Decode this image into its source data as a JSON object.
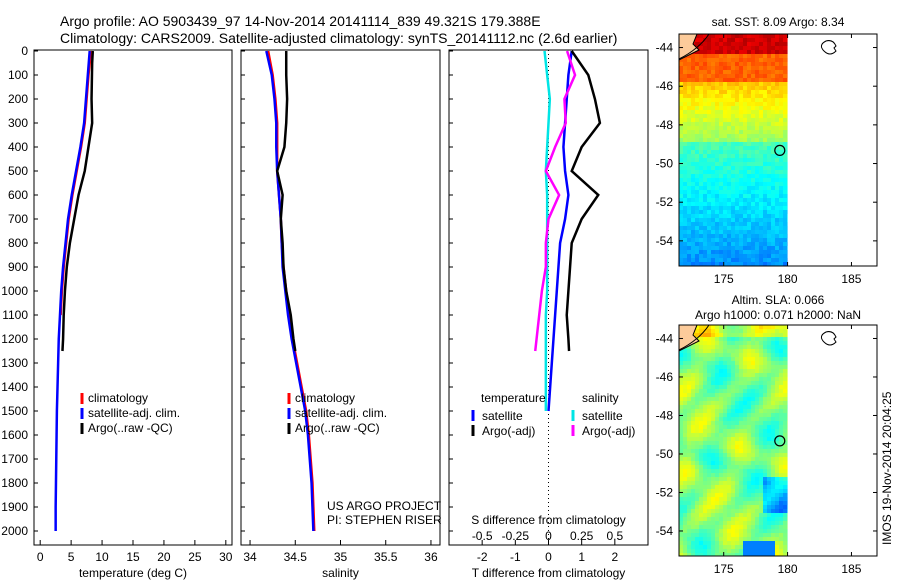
{
  "header": {
    "line1": "Argo profile: AO 5903439_97 14-Nov-2014 20141114_839 49.321S 179.388E",
    "line2": "Climatology: CARS2009. Satellite-adjusted climatology: synTS_20141112.nc (2.6d earlier)"
  },
  "stamp": "IMOS 19-Nov-2014 20:04:25",
  "credit": {
    "line1": "US ARGO PROJECT",
    "line2": "PI: STEPHEN RISER"
  },
  "colors": {
    "climatology": "#ff0000",
    "satellite": "#0000ff",
    "argo": "#000000",
    "sal_satellite": "#00e5e5",
    "sal_argo": "#ff00ff"
  },
  "chart_data": [
    {
      "type": "line",
      "name": "temperature",
      "xlabel": "temperature (deg C)",
      "xlim": [
        -1,
        31
      ],
      "ylim": [
        2000,
        0
      ],
      "xticks": [
        0,
        5,
        10,
        15,
        20,
        25,
        30
      ],
      "yticks": [
        0,
        100,
        200,
        300,
        400,
        500,
        600,
        700,
        800,
        900,
        1000,
        1100,
        1200,
        1300,
        1400,
        1500,
        1600,
        1700,
        1800,
        1900,
        2000
      ],
      "legend": [
        "climatology",
        "satellite-adj. clim.",
        "Argo(..raw -QC)"
      ],
      "series": [
        {
          "name": "climatology",
          "color": "#ff0000",
          "x": [
            8.2,
            7.8,
            7.5,
            7.2,
            6.6,
            5.9,
            5.2,
            4.6,
            4.2,
            3.8,
            3.5,
            3.3
          ],
          "y": [
            0,
            100,
            200,
            300,
            400,
            500,
            600,
            700,
            800,
            900,
            1000,
            1100
          ]
        },
        {
          "name": "satellite-adj. clim.",
          "color": "#0000ff",
          "x": [
            8.0,
            7.7,
            7.4,
            7.1,
            6.5,
            5.8,
            5.1,
            4.5,
            4.1,
            3.7,
            3.4,
            3.2,
            3.0,
            2.9,
            2.8,
            2.7,
            2.65,
            2.6,
            2.55,
            2.5,
            2.5
          ],
          "y": [
            0,
            100,
            200,
            300,
            400,
            500,
            600,
            700,
            800,
            900,
            1000,
            1100,
            1200,
            1300,
            1400,
            1500,
            1600,
            1700,
            1800,
            1900,
            2000
          ]
        },
        {
          "name": "Argo(..raw -QC)",
          "color": "#000000",
          "x": [
            8.5,
            8.4,
            8.3,
            8.4,
            7.8,
            7.2,
            6.2,
            5.5,
            4.8,
            4.3,
            4.0,
            3.8,
            3.7,
            3.6
          ],
          "y": [
            0,
            50,
            200,
            300,
            400,
            500,
            600,
            700,
            800,
            900,
            1000,
            1100,
            1200,
            1250
          ]
        }
      ]
    },
    {
      "type": "line",
      "name": "salinity",
      "xlabel": "salinity",
      "xlim": [
        33.9,
        36.1
      ],
      "ylim": [
        2000,
        0
      ],
      "xticks": [
        34,
        34.5,
        35,
        35.5,
        36
      ],
      "legend": [
        "climatology",
        "satellite-adj. clim.",
        "Argo(..raw -QC)"
      ],
      "series": [
        {
          "name": "climatology",
          "color": "#ff0000",
          "x": [
            34.2,
            34.25,
            34.28,
            34.3,
            34.3,
            34.3,
            34.32,
            34.34,
            34.35,
            34.37,
            34.4,
            34.43,
            34.47,
            34.52,
            34.57,
            34.62,
            34.65,
            34.67,
            34.69,
            34.7,
            34.71
          ],
          "y": [
            0,
            100,
            200,
            300,
            400,
            500,
            600,
            700,
            800,
            900,
            1000,
            1100,
            1200,
            1300,
            1400,
            1500,
            1600,
            1700,
            1800,
            1900,
            2000
          ]
        },
        {
          "name": "satellite-adj. clim.",
          "color": "#0000ff",
          "x": [
            34.18,
            34.24,
            34.27,
            34.29,
            34.29,
            34.3,
            34.32,
            34.34,
            34.35,
            34.36,
            34.39,
            34.42,
            34.46,
            34.51,
            34.56,
            34.61,
            34.64,
            34.66,
            34.68,
            34.69,
            34.7
          ],
          "y": [
            0,
            100,
            200,
            300,
            400,
            500,
            600,
            700,
            800,
            900,
            1000,
            1100,
            1200,
            1300,
            1400,
            1500,
            1600,
            1700,
            1800,
            1900,
            2000
          ]
        },
        {
          "name": "Argo(..raw -QC)",
          "color": "#000000",
          "x": [
            34.4,
            34.4,
            34.41,
            34.4,
            34.38,
            34.3,
            34.36,
            34.34,
            34.36,
            34.37,
            34.4,
            34.45,
            34.48,
            34.5
          ],
          "y": [
            0,
            100,
            200,
            300,
            400,
            500,
            600,
            700,
            800,
            900,
            1000,
            1100,
            1200,
            1250
          ]
        }
      ]
    },
    {
      "type": "line",
      "name": "difference",
      "xlabel": "T difference from climatology",
      "x2label": "S difference from climatology",
      "xlim": [
        -3,
        3
      ],
      "x2lim": [
        -0.75,
        0.75
      ],
      "ylim": [
        2000,
        0
      ],
      "xticks": [
        -2,
        -1,
        0,
        1,
        2
      ],
      "x2ticks": [
        -0.5,
        -0.25,
        0,
        0.25,
        0.5
      ],
      "legend": {
        "temperature": "temperature",
        "salinity": "salinity",
        "items": [
          "satellite",
          "Argo(-adj)",
          "satellite",
          "Argo(-adj)"
        ]
      },
      "series": [
        {
          "name": "T satellite",
          "axis": "T",
          "color": "#0000ff",
          "x": [
            0.7,
            0.6,
            0.55,
            0.5,
            0.45,
            0.5,
            0.6,
            0.5,
            0.35,
            0.3,
            0.25,
            0.2,
            0.15,
            0.1,
            0.05,
            0
          ],
          "y": [
            0,
            100,
            200,
            300,
            400,
            500,
            600,
            700,
            800,
            900,
            1000,
            1100,
            1200,
            1300,
            1400,
            1500
          ]
        },
        {
          "name": "T Argo(-adj)",
          "axis": "T",
          "color": "#000000",
          "x": [
            0.7,
            1.2,
            1.4,
            1.55,
            1.0,
            0.7,
            1.5,
            1.0,
            0.7,
            0.65,
            0.6,
            0.55,
            0.6,
            0.62
          ],
          "y": [
            0,
            100,
            200,
            300,
            400,
            500,
            600,
            700,
            800,
            900,
            1000,
            1100,
            1200,
            1250
          ]
        },
        {
          "name": "S satellite",
          "axis": "S",
          "color": "#00e5e5",
          "x": [
            -0.03,
            -0.01,
            0.01,
            0.0,
            -0.01,
            -0.02,
            -0.01,
            -0.01,
            -0.01,
            -0.01,
            -0.01,
            -0.02,
            -0.02,
            -0.02,
            -0.02,
            -0.02
          ],
          "y": [
            0,
            100,
            200,
            300,
            400,
            500,
            600,
            700,
            800,
            900,
            1000,
            1100,
            1200,
            1300,
            1400,
            1500
          ]
        },
        {
          "name": "S Argo(-adj)",
          "axis": "S",
          "color": "#ff00ff",
          "x": [
            0.14,
            0.2,
            0.12,
            0.13,
            0.05,
            -0.02,
            0.08,
            0.0,
            -0.02,
            -0.02,
            -0.05,
            -0.07,
            -0.09,
            -0.1
          ],
          "y": [
            0,
            100,
            200,
            300,
            400,
            500,
            600,
            700,
            800,
            900,
            1000,
            1100,
            1200,
            1250
          ]
        }
      ]
    },
    {
      "type": "heatmap",
      "name": "sst-map",
      "title": "sat. SST: 8.09 Argo: 8.34",
      "xlim": [
        171.5,
        187
      ],
      "ylim": [
        -55.3,
        -43.3
      ],
      "xticks": [
        175,
        180,
        185
      ],
      "yticks": [
        -44,
        -46,
        -48,
        -50,
        -52,
        -54
      ],
      "argo_position": [
        179.39,
        -49.32
      ]
    },
    {
      "type": "heatmap",
      "name": "sla-map",
      "title": "Altim. SLA: 0.066",
      "subtitle": "Argo h1000: 0.071 h2000: NaN",
      "xlim": [
        171.5,
        187
      ],
      "ylim": [
        -55.3,
        -43.3
      ],
      "xticks": [
        175,
        180,
        185
      ],
      "yticks": [
        -44,
        -46,
        -48,
        -50,
        -52,
        -54
      ],
      "argo_position": [
        179.39,
        -49.32
      ]
    }
  ]
}
